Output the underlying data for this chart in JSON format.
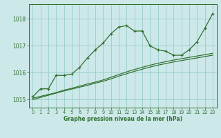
{
  "background_color": "#cce8e8",
  "grid_color": "#99cccc",
  "line_color": "#2d6e2d",
  "title": "Graphe pression niveau de la mer (hPa)",
  "xlim": [
    -0.5,
    23.5
  ],
  "ylim": [
    1014.7,
    1018.55
  ],
  "yticks": [
    1015,
    1016,
    1017,
    1018
  ],
  "xticks": [
    0,
    1,
    2,
    3,
    4,
    5,
    6,
    7,
    8,
    9,
    10,
    11,
    12,
    13,
    14,
    15,
    16,
    17,
    18,
    19,
    20,
    21,
    22,
    23
  ],
  "hours": [
    0,
    1,
    2,
    3,
    4,
    5,
    6,
    7,
    8,
    9,
    10,
    11,
    12,
    13,
    14,
    15,
    16,
    17,
    18,
    19,
    20,
    21,
    22,
    23
  ],
  "main_line": [
    1015.1,
    1015.4,
    1015.4,
    1015.9,
    1015.9,
    1015.95,
    1016.2,
    1016.55,
    1016.85,
    1017.1,
    1017.45,
    1017.7,
    1017.75,
    1017.55,
    1017.55,
    1017.0,
    1016.85,
    1016.8,
    1016.65,
    1016.65,
    1016.85,
    1017.15,
    1017.65,
    1018.2
  ],
  "trend_line1": [
    1015.05,
    1015.12,
    1015.19,
    1015.26,
    1015.35,
    1015.42,
    1015.5,
    1015.58,
    1015.65,
    1015.73,
    1015.83,
    1015.93,
    1016.03,
    1016.12,
    1016.2,
    1016.28,
    1016.35,
    1016.41,
    1016.47,
    1016.52,
    1016.57,
    1016.62,
    1016.67,
    1016.72
  ],
  "trend_line2": [
    1015.0,
    1015.08,
    1015.16,
    1015.24,
    1015.32,
    1015.39,
    1015.46,
    1015.53,
    1015.61,
    1015.68,
    1015.77,
    1015.87,
    1015.96,
    1016.05,
    1016.13,
    1016.21,
    1016.28,
    1016.34,
    1016.4,
    1016.45,
    1016.5,
    1016.55,
    1016.6,
    1016.65
  ]
}
